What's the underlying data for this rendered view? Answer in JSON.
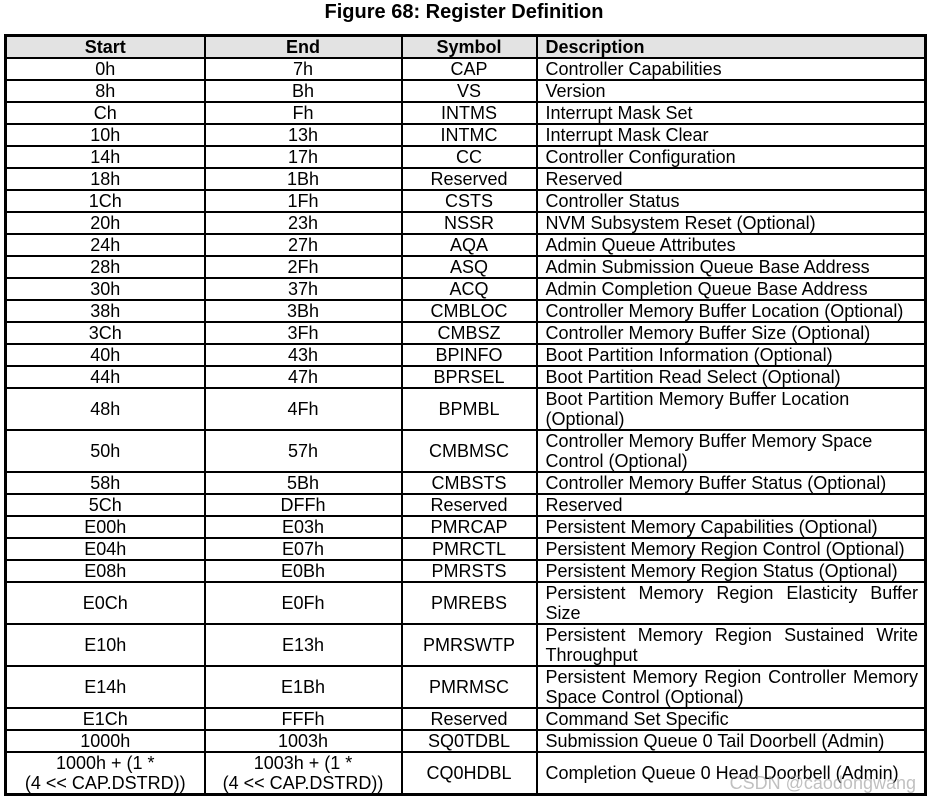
{
  "figure_title": "Figure 68: Register Definition",
  "watermark": "CSDN @caodongwang",
  "table": {
    "columns": [
      "Start",
      "End",
      "Symbol",
      "Description"
    ],
    "rows": [
      {
        "start": "0h",
        "end": "7h",
        "symbol": "CAP",
        "desc": "Controller Capabilities",
        "justify": false
      },
      {
        "start": "8h",
        "end": "Bh",
        "symbol": "VS",
        "desc": "Version",
        "justify": false
      },
      {
        "start": "Ch",
        "end": "Fh",
        "symbol": "INTMS",
        "desc": "Interrupt Mask Set",
        "justify": false
      },
      {
        "start": "10h",
        "end": "13h",
        "symbol": "INTMC",
        "desc": "Interrupt Mask Clear",
        "justify": false
      },
      {
        "start": "14h",
        "end": "17h",
        "symbol": "CC",
        "desc": "Controller Configuration",
        "justify": false
      },
      {
        "start": "18h",
        "end": "1Bh",
        "symbol": "Reserved",
        "desc": "Reserved",
        "justify": false
      },
      {
        "start": "1Ch",
        "end": "1Fh",
        "symbol": "CSTS",
        "desc": "Controller Status",
        "justify": false
      },
      {
        "start": "20h",
        "end": "23h",
        "symbol": "NSSR",
        "desc": "NVM Subsystem Reset (Optional)",
        "justify": false
      },
      {
        "start": "24h",
        "end": "27h",
        "symbol": "AQA",
        "desc": "Admin Queue Attributes",
        "justify": false
      },
      {
        "start": "28h",
        "end": "2Fh",
        "symbol": "ASQ",
        "desc": "Admin Submission Queue Base Address",
        "justify": false
      },
      {
        "start": "30h",
        "end": "37h",
        "symbol": "ACQ",
        "desc": "Admin Completion Queue Base Address",
        "justify": false
      },
      {
        "start": "38h",
        "end": "3Bh",
        "symbol": "CMBLOC",
        "desc": "Controller Memory Buffer Location (Optional)",
        "justify": false
      },
      {
        "start": "3Ch",
        "end": "3Fh",
        "symbol": "CMBSZ",
        "desc": "Controller Memory Buffer Size (Optional)",
        "justify": false
      },
      {
        "start": "40h",
        "end": "43h",
        "symbol": "BPINFO",
        "desc": "Boot Partition Information (Optional)",
        "justify": false
      },
      {
        "start": "44h",
        "end": "47h",
        "symbol": "BPRSEL",
        "desc": "Boot Partition Read Select (Optional)",
        "justify": false
      },
      {
        "start": "48h",
        "end": "4Fh",
        "symbol": "BPMBL",
        "desc": "Boot Partition Memory Buffer Location (Optional)",
        "justify": false
      },
      {
        "start": "50h",
        "end": "57h",
        "symbol": "CMBMSC",
        "desc": "Controller Memory Buffer Memory Space Control (Optional)",
        "justify": false
      },
      {
        "start": "58h",
        "end": "5Bh",
        "symbol": "CMBSTS",
        "desc": "Controller Memory Buffer Status (Optional)",
        "justify": false
      },
      {
        "start": "5Ch",
        "end": "DFFh",
        "symbol": "Reserved",
        "desc": "Reserved",
        "justify": false
      },
      {
        "start": "E00h",
        "end": "E03h",
        "symbol": "PMRCAP",
        "desc": "Persistent Memory Capabilities (Optional)",
        "justify": false
      },
      {
        "start": "E04h",
        "end": "E07h",
        "symbol": "PMRCTL",
        "desc": "Persistent Memory Region Control (Optional)",
        "justify": false
      },
      {
        "start": "E08h",
        "end": "E0Bh",
        "symbol": "PMRSTS",
        "desc": "Persistent Memory Region Status (Optional)",
        "justify": false
      },
      {
        "start": "E0Ch",
        "end": "E0Fh",
        "symbol": "PMREBS",
        "desc": "Persistent Memory Region Elasticity Buffer Size",
        "justify": true
      },
      {
        "start": "E10h",
        "end": "E13h",
        "symbol": "PMRSWTP",
        "desc": "Persistent Memory Region Sustained Write Throughput",
        "justify": true
      },
      {
        "start": "E14h",
        "end": "E1Bh",
        "symbol": "PMRMSC",
        "desc": "Persistent Memory Region Controller Memory Space Control (Optional)",
        "justify": true
      },
      {
        "start": "E1Ch",
        "end": "FFFh",
        "symbol": "Reserved",
        "desc": "Command Set Specific",
        "justify": false
      },
      {
        "start": "1000h",
        "end": "1003h",
        "symbol": "SQ0TDBL",
        "desc": "Submission Queue 0 Tail Doorbell (Admin)",
        "justify": false
      },
      {
        "start": "1000h + (1 *\n(4 << CAP.DSTRD))",
        "end": "1003h + (1 *\n(4 << CAP.DSTRD))",
        "symbol": "CQ0HDBL",
        "desc": "Completion Queue 0 Head Doorbell (Admin)",
        "justify": false
      }
    ]
  }
}
